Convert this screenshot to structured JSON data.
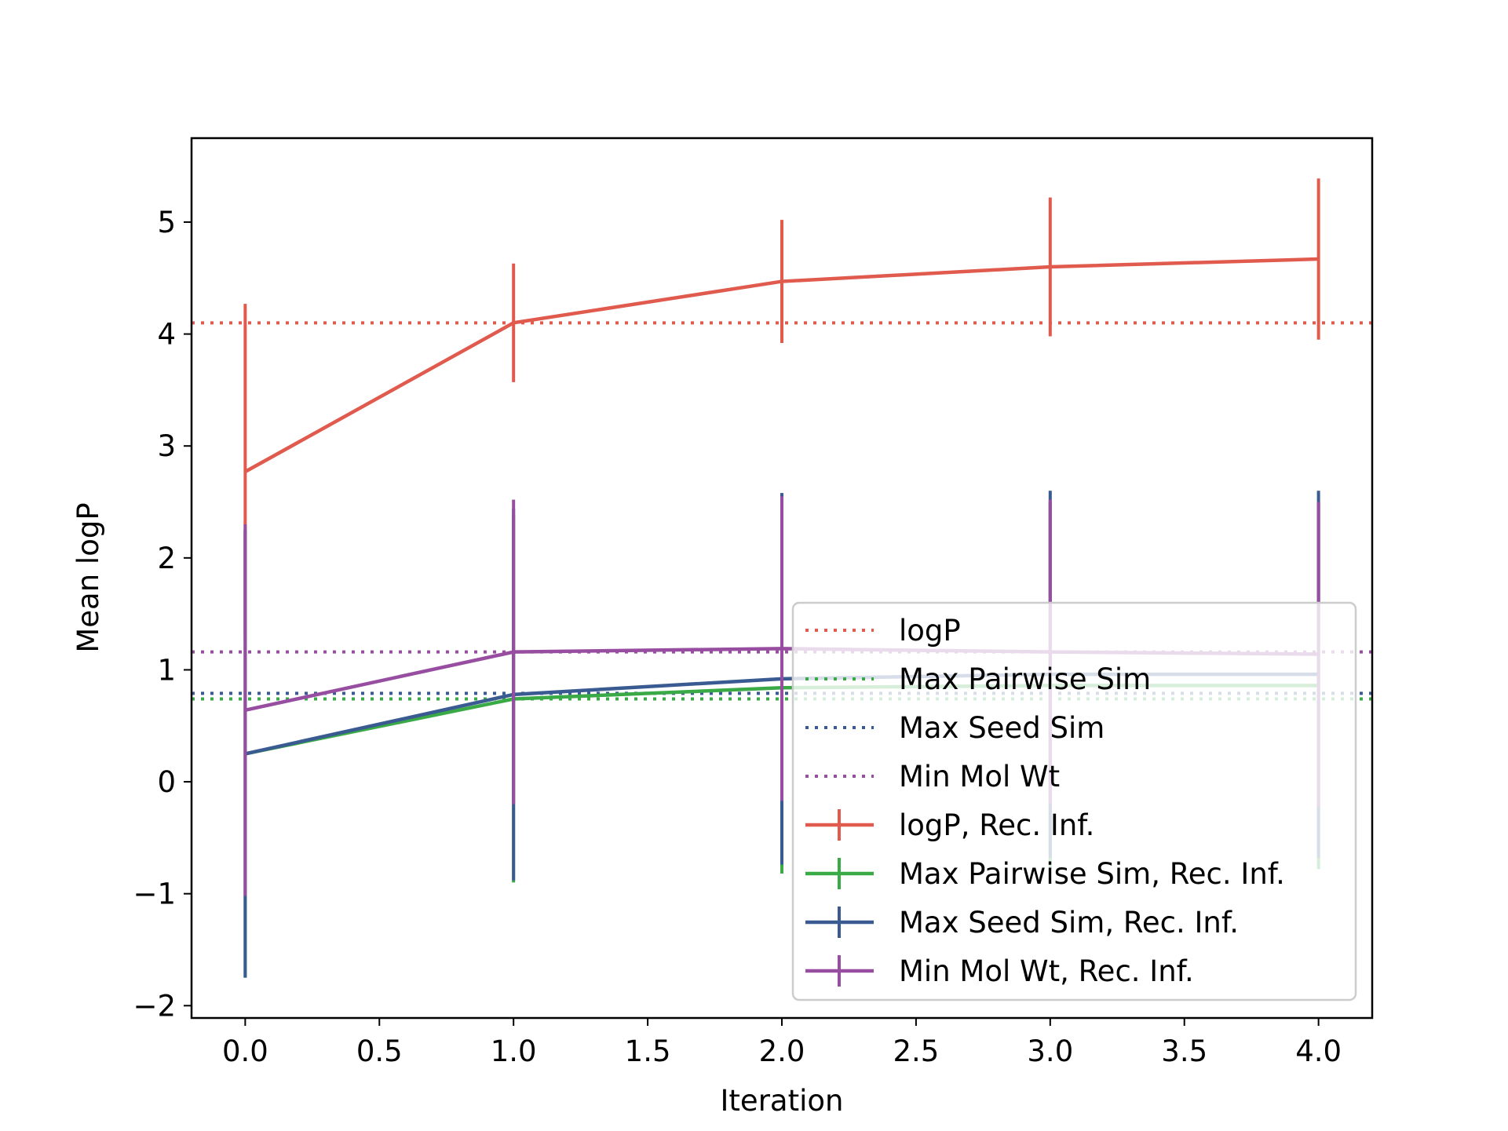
{
  "chart_data": {
    "type": "line",
    "xlabel": "Iteration",
    "ylabel": "Mean logP",
    "xlim": [
      -0.2,
      4.2
    ],
    "ylim": [
      -2.11,
      5.75
    ],
    "xticks": [
      "0.0",
      "0.5",
      "1.0",
      "1.5",
      "2.0",
      "2.5",
      "3.0",
      "3.5",
      "4.0"
    ],
    "yticks": [
      "−2",
      "−1",
      "0",
      "1",
      "2",
      "3",
      "4",
      "5"
    ],
    "grid": false,
    "legend_position": "lower-right",
    "x": [
      0,
      1,
      2,
      3,
      4
    ],
    "reference_lines": [
      {
        "name": "logP",
        "y": 4.1,
        "color": "#e05a4e",
        "style": "dotted"
      },
      {
        "name": "Max Pairwise Sim",
        "y": 0.74,
        "color": "#3aaa46",
        "style": "dotted"
      },
      {
        "name": "Max Seed Sim",
        "y": 0.79,
        "color": "#3a5a92",
        "style": "dotted"
      },
      {
        "name": "Min Mol Wt",
        "y": 1.16,
        "color": "#984ea0",
        "style": "dotted"
      }
    ],
    "series": [
      {
        "name": "logP, Rec. Inf.",
        "color": "#e05a4e",
        "values": [
          2.77,
          4.1,
          4.47,
          4.6,
          4.67
        ],
        "errors": [
          1.5,
          0.53,
          0.55,
          0.62,
          0.72
        ]
      },
      {
        "name": "Max Pairwise Sim, Rec. Inf.",
        "color": "#3aaa46",
        "values": [
          0.25,
          0.74,
          0.84,
          0.86,
          0.86
        ],
        "errors": [
          2.0,
          1.64,
          1.66,
          1.64,
          1.64
        ]
      },
      {
        "name": "Max Seed Sim, Rec. Inf.",
        "color": "#3a5a92",
        "values": [
          0.25,
          0.78,
          0.92,
          0.96,
          0.96
        ],
        "errors": [
          2.0,
          1.66,
          1.66,
          1.64,
          1.64
        ]
      },
      {
        "name": "Min Mol Wt, Rec. Inf.",
        "color": "#984ea0",
        "values": [
          0.64,
          1.16,
          1.19,
          1.16,
          1.14
        ],
        "errors": [
          1.66,
          1.36,
          1.36,
          1.36,
          1.36
        ]
      }
    ]
  }
}
